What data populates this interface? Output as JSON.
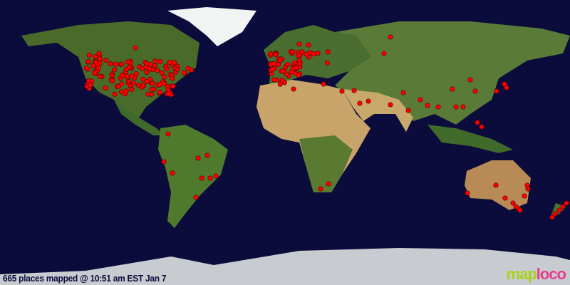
{
  "map": {
    "projection": "equirectangular world",
    "marker_color": "#ff0000",
    "ocean_color": "#0b0b3c"
  },
  "caption": "665 places mapped @ 10:51 am EST Jan 7",
  "logo": {
    "part1": "map",
    "part2": "loco",
    "color1": "#a8d21e",
    "color2": "#e83c8c"
  }
}
